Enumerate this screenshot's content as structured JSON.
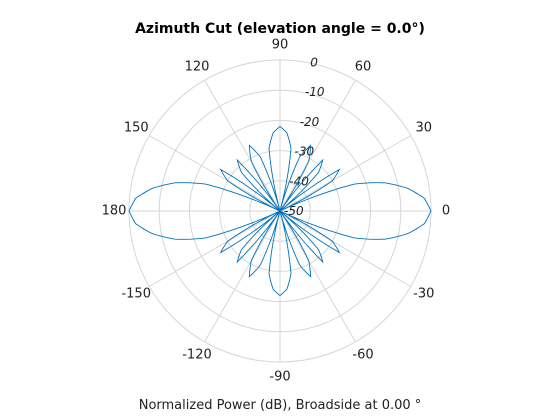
{
  "chart_data": {
    "type": "polar-line",
    "title": "Azimuth Cut (elevation angle = 0.0°)",
    "xlabel": "Normalized Power (dB), Broadside at 0.00 °",
    "angle_unit": "degrees",
    "angular_ticks": [
      "0",
      "30",
      "60",
      "90",
      "120",
      "150",
      "180",
      "-150",
      "-120",
      "-90",
      "-60",
      "-30"
    ],
    "angular_tick_values": [
      0,
      30,
      60,
      90,
      120,
      150,
      180,
      -150,
      -120,
      -90,
      -60,
      -30
    ],
    "radial_ticks": [
      "0",
      "-10",
      "-20",
      "-30",
      "-40",
      "-50"
    ],
    "radial_tick_values": [
      0,
      -10,
      -20,
      -30,
      -40,
      -50
    ],
    "rlim": [
      -50,
      0
    ],
    "grid": true,
    "line_color": "#0072BD",
    "series": [
      {
        "angle_deg": [
          0,
          5,
          10,
          15,
          20,
          25,
          30,
          35,
          40,
          45,
          50,
          55,
          60,
          65,
          70,
          75,
          80,
          85,
          90,
          95,
          100,
          105,
          110,
          115,
          120,
          125,
          130,
          135,
          140,
          145,
          150,
          155,
          160,
          165,
          170,
          175,
          180,
          185,
          190,
          195,
          200,
          205,
          210,
          215,
          220,
          225,
          230,
          235,
          240,
          245,
          250,
          255,
          260,
          265,
          270,
          275,
          280,
          285,
          290,
          295,
          300,
          305,
          310,
          315,
          320,
          325,
          330,
          335,
          340,
          345,
          350,
          355
        ],
        "power_db": [
          0,
          -2,
          -7,
          -14,
          -24,
          -50,
          -30,
          -26,
          -50,
          -32,
          -28,
          -50,
          -31,
          -26,
          -31,
          -50,
          -29,
          -24,
          -22,
          -24,
          -29,
          -50,
          -31,
          -26,
          -31,
          -50,
          -28,
          -32,
          -50,
          -26,
          -30,
          -50,
          -24,
          -14,
          -7,
          -2,
          0,
          -2,
          -7,
          -14,
          -24,
          -50,
          -30,
          -26,
          -50,
          -32,
          -28,
          -50,
          -31,
          -26,
          -31,
          -50,
          -29,
          -24,
          -22,
          -24,
          -29,
          -50,
          -31,
          -26,
          -31,
          -50,
          -28,
          -32,
          -50,
          -26,
          -30,
          -50,
          -24,
          -14,
          -7,
          -2
        ]
      }
    ]
  }
}
